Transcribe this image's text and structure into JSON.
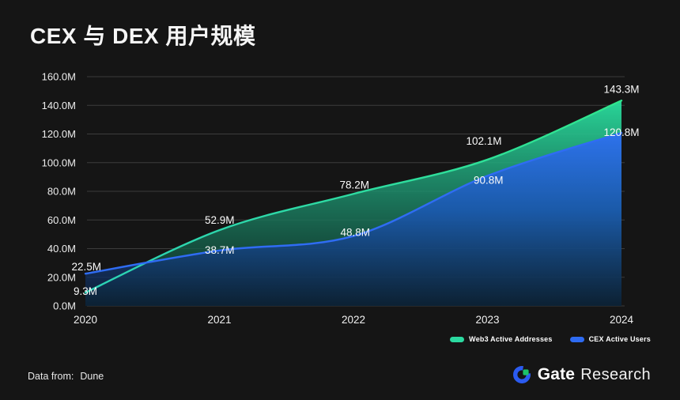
{
  "title": "CEX 与 DEX 用户规模",
  "footer": {
    "data_from_label": "Data from:",
    "source": "Dune",
    "brand_bold": "Gate",
    "brand_light": "Research"
  },
  "brand_colors": {
    "ring_blue": "#2b5bf0",
    "square_green": "#1cc268"
  },
  "chart_data": {
    "type": "area",
    "title": "CEX 与 DEX 用户规模",
    "x": [
      "2020",
      "2021",
      "2022",
      "2023",
      "2024"
    ],
    "series": [
      {
        "name": "Web3 Active Addresses",
        "color": "#2bd9a0",
        "line_color_start": "#2cd2b6",
        "line_color_end": "#30e58d",
        "fill_top": "#2adf9f",
        "fill_mid": "#1d8f6d",
        "fill_bottom": "#0d2b24",
        "values": [
          9.3,
          52.9,
          78.2,
          102.1,
          143.3
        ],
        "labels": [
          "9.3M",
          "52.9M",
          "78.2M",
          "102.1M",
          "143.3M"
        ]
      },
      {
        "name": "CEX Active Users",
        "color": "#2e6bf2",
        "line_color_start": "#2f6cf4",
        "line_color_end": "#2f6cf4",
        "fill_top": "#2e6ef2",
        "fill_mid": "#1b56bb",
        "fill_bottom": "#0b1f3a",
        "values": [
          22.5,
          38.7,
          48.8,
          90.8,
          120.8
        ],
        "labels": [
          "22.5M",
          "38.7M",
          "48.8M",
          "90.8M",
          "120.8M"
        ]
      }
    ],
    "ylim": [
      0,
      160
    ],
    "ytick_step": 20,
    "ytick_labels": [
      "0.0M",
      "20.0M",
      "40.0M",
      "60.0M",
      "80.0M",
      "100.0M",
      "120.0M",
      "140.0M",
      "160.0M"
    ],
    "xlabel": "",
    "ylabel": "",
    "grid": true,
    "grid_color": "#3c3c3c",
    "legend_position": "bottom-right",
    "unit": "M"
  }
}
